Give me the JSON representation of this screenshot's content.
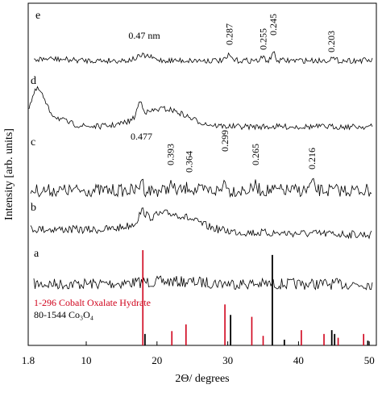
{
  "chart_data": {
    "type": "line",
    "title": "",
    "xlabel": "2Θ/ degrees",
    "ylabel": "Intensity [arb. units]",
    "xlim": [
      1.8,
      51
    ],
    "x_ticks": [
      1.8,
      10,
      20,
      30,
      40,
      50
    ],
    "x_tick_labels": [
      "1.8",
      "10",
      "20",
      "30",
      "40",
      "50"
    ],
    "grid": false,
    "series": [
      {
        "name": "a",
        "peaks": [],
        "peak_labels": []
      },
      {
        "name": "b",
        "broad_humps": [
          18.0,
          22.0
        ],
        "peak_labels": []
      },
      {
        "name": "c",
        "peaks": [
          17.8,
          21.9,
          24.5,
          29.6,
          33.9,
          41.9
        ],
        "peak_labels": [
          "0.477",
          "0.393",
          "0.364",
          "0.299",
          "0.265",
          "0.216"
        ]
      },
      {
        "name": "d",
        "broad_humps": [
          17.6,
          21.5
        ],
        "peak_labels": []
      },
      {
        "name": "e",
        "peaks": [
          18.2,
          30.2,
          35.0,
          36.4,
          44.6
        ],
        "peak_labels": [
          "0.47 nm",
          "0.287",
          "0.255",
          "0.245",
          "0.203"
        ]
      }
    ],
    "reference_patterns": [
      {
        "name": "1-296 Cobalt Oxalate Hydrate",
        "color": "#d0021b",
        "sticks": [
          {
            "x": 18.0,
            "intensity": 1.0
          },
          {
            "x": 22.1,
            "intensity": 0.15
          },
          {
            "x": 24.1,
            "intensity": 0.22
          },
          {
            "x": 29.6,
            "intensity": 0.43
          },
          {
            "x": 33.4,
            "intensity": 0.3
          },
          {
            "x": 35.0,
            "intensity": 0.1
          },
          {
            "x": 40.4,
            "intensity": 0.16
          },
          {
            "x": 43.6,
            "intensity": 0.12
          },
          {
            "x": 45.6,
            "intensity": 0.08
          },
          {
            "x": 49.2,
            "intensity": 0.12
          }
        ]
      },
      {
        "name": "80-1544 Co₃O₄",
        "color": "#000000",
        "sticks": [
          {
            "x": 18.3,
            "intensity": 0.12
          },
          {
            "x": 30.4,
            "intensity": 0.32
          },
          {
            "x": 36.3,
            "intensity": 0.95
          },
          {
            "x": 38.0,
            "intensity": 0.06
          },
          {
            "x": 44.7,
            "intensity": 0.16
          },
          {
            "x": 45.1,
            "intensity": 0.12
          },
          {
            "x": 49.8,
            "intensity": 0.05
          }
        ]
      }
    ]
  }
}
